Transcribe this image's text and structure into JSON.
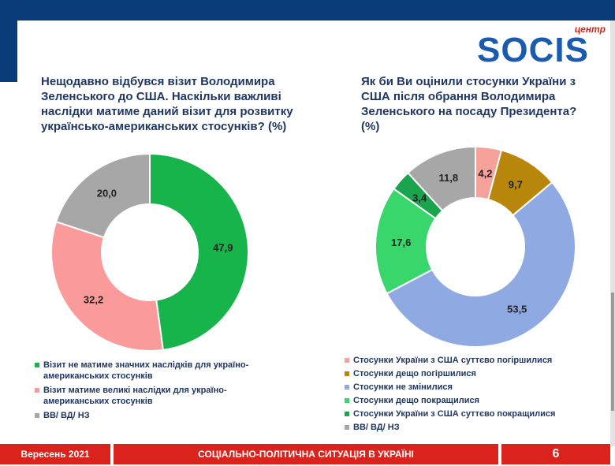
{
  "logo": {
    "tag": "центр",
    "word": "SOCIS"
  },
  "colors": {
    "green": "#17b34b",
    "pink": "#fb9a9b",
    "gray": "#a7a7a7",
    "salmon": "#f6a19a",
    "olive": "#b8860b",
    "blue": "#8faae2",
    "lightgreen": "#38d66b",
    "darkgreen": "#1aa44d",
    "footer_red": "#d9231c",
    "header_navy": "#0b3c7a"
  },
  "left": {
    "question": "Нещодавно відбувся візит Володимира Зеленського до США. Наскільки важливі наслідки матиме даний візит для розвитку українсько-американських стосунків? (%)",
    "legend": [
      "Візит не матиме значних наслідків для україно-американських стосунків",
      "Візит матиме великі наслідки для україно-американських стосунків",
      "ВВ/ ВД/ НЗ"
    ]
  },
  "right": {
    "question": "Як би Ви оцінили стосунки України з США після обрання Володимира Зеленського на посаду Президента? (%)",
    "legend": [
      "Стосунки України з США суттєво погіршилися",
      "Стосунки дещо погіршилися",
      "Стосунки не змінилися",
      "Стосунки дещо покращилися",
      "Стосунки України з США суттєво покращилися",
      "ВВ/ ВД/ НЗ"
    ]
  },
  "chart_data": [
    {
      "type": "pie",
      "title": "Нещодавно відбувся візит Володимира Зеленського до США. Наскільки важливі наслідки матиме даний візит для розвитку українсько-американських стосунків? (%)",
      "categories": [
        "Візит не матиме значних наслідків для україно-американських стосунків",
        "Візит матиме великі наслідки для україно-американських стосунків",
        "ВВ/ ВД/ НЗ"
      ],
      "values": [
        47.9,
        32.2,
        20.0
      ],
      "labels": [
        "47,9",
        "32,2",
        "20,0"
      ],
      "colors": [
        "#17b34b",
        "#fb9a9b",
        "#a7a7a7"
      ],
      "legend": "bottom"
    },
    {
      "type": "pie",
      "title": "Як би Ви оцінили стосунки України з США після обрання Володимира Зеленського на посаду Президента? (%)",
      "categories": [
        "Стосунки України з США суттєво погіршилися",
        "Стосунки дещо погіршилися",
        "Стосунки не змінилися",
        "Стосунки дещо покращилися",
        "Стосунки України з США суттєво покращилися",
        "ВВ/ ВД/ НЗ"
      ],
      "values": [
        4.2,
        9.7,
        53.5,
        17.6,
        3.4,
        11.8
      ],
      "labels": [
        "4,2",
        "9,7",
        "53,5",
        "17,6",
        "3,4",
        "11,8"
      ],
      "colors": [
        "#f6a19a",
        "#b8860b",
        "#8faae2",
        "#38d66b",
        "#1aa44d",
        "#a7a7a7"
      ],
      "legend": "bottom"
    }
  ],
  "footer": {
    "date": "Вересень 2021",
    "title": "СОЦІАЛЬНО-ПОЛІТИЧНА СИТУАЦІЯ В УКРАЇНІ",
    "page": "6"
  }
}
